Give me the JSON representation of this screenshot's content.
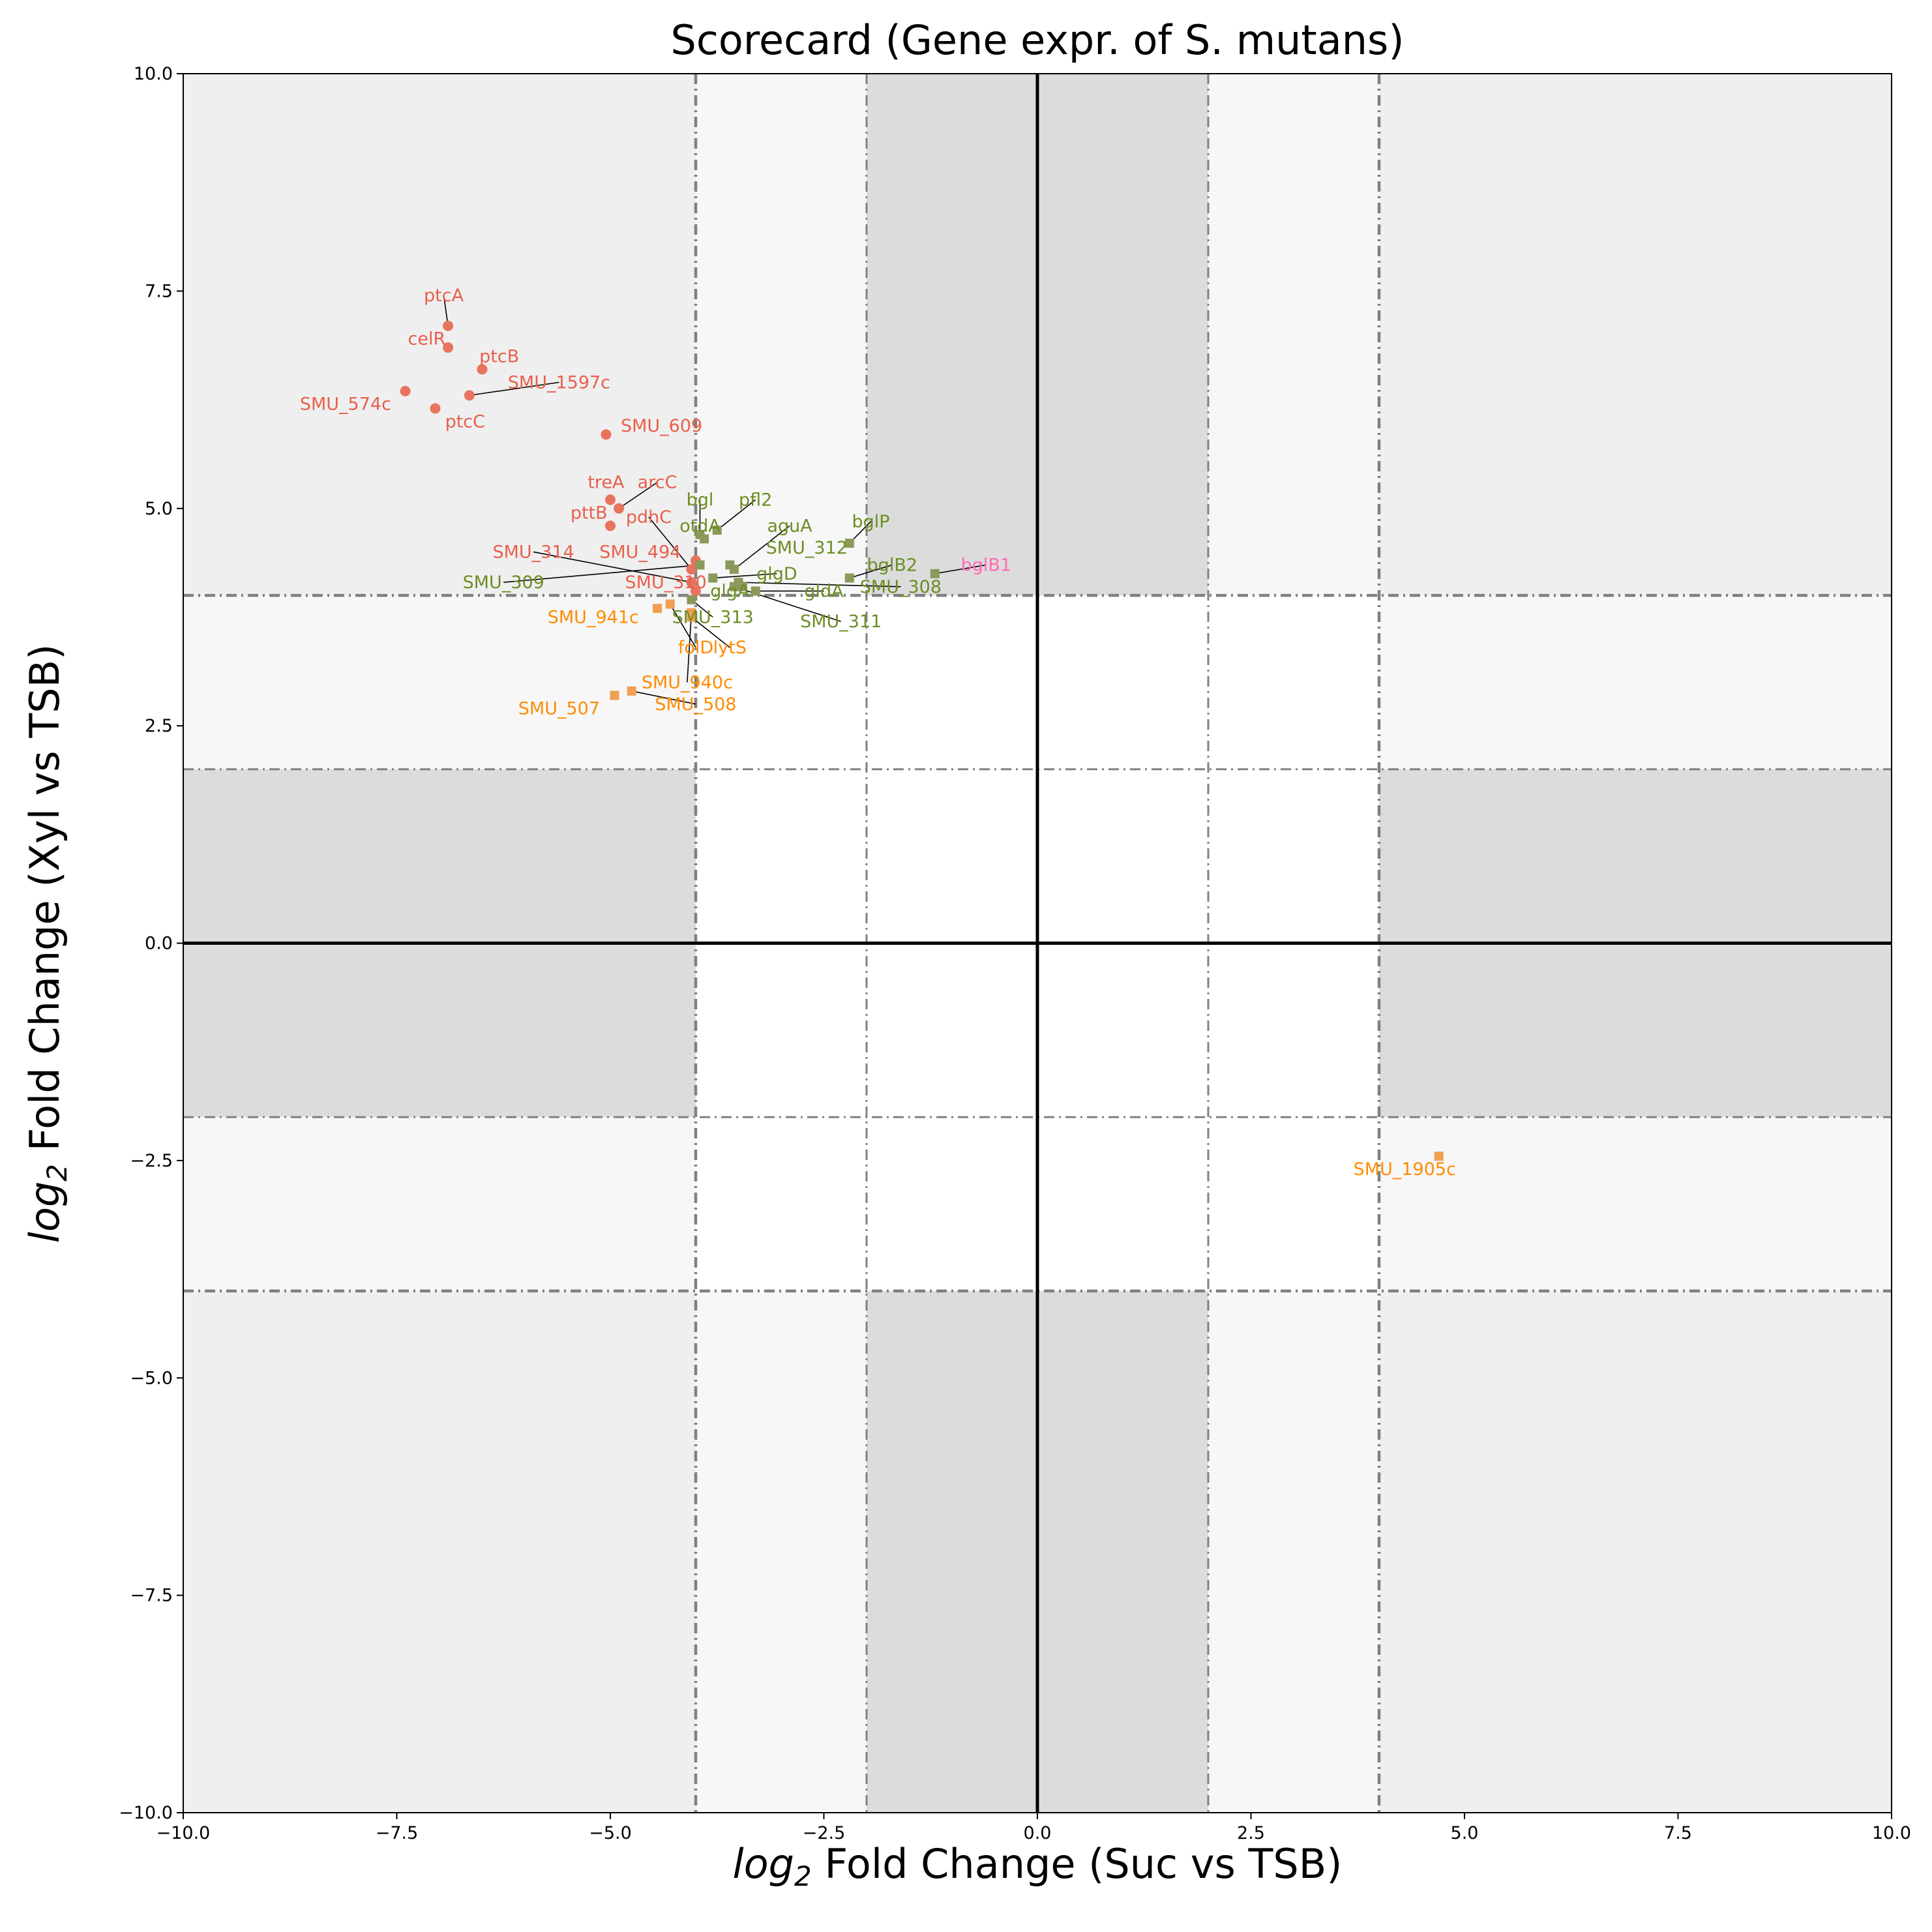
{
  "chart_data": {
    "type": "scatter",
    "title": "Scorecard (Gene expr. of S. mutans)",
    "xlabel_sub": "log",
    "xlabel_subscript": "2",
    "xlabel_rest": " Fold Change (Suc vs TSB)",
    "ylabel_sub": "log",
    "ylabel_subscript": "2",
    "ylabel_rest": " Fold Change (Xyl vs TSB)",
    "xlim": [
      -10,
      10
    ],
    "ylim": [
      -10,
      10
    ],
    "xticks": [
      "−10.0",
      "−7.5",
      "−5.0",
      "−2.5",
      "0.0",
      "2.5",
      "5.0",
      "7.5",
      "10.0"
    ],
    "yticks": [
      "−10.0",
      "−7.5",
      "−5.0",
      "−2.5",
      "0.0",
      "2.5",
      "5.0",
      "7.5",
      "10.0"
    ],
    "xtick_values": [
      -10,
      -7.5,
      -5,
      -2.5,
      0,
      2.5,
      5,
      7.5,
      10
    ],
    "ytick_values": [
      -10,
      -7.5,
      -5,
      -2.5,
      0,
      2.5,
      5,
      7.5,
      10
    ],
    "thresholds": {
      "inner": 2,
      "outer": 4
    },
    "colors": {
      "red": "#e8735e",
      "red_label": "#e8604c",
      "green": "#8a9a5b",
      "green_label": "#6b8e23",
      "orange": "#f0a050",
      "orange_label": "#ff8c00",
      "pink_label": "#ff69b4",
      "shade_dark": "#dcdcdc",
      "shade_mid": "#efefef",
      "shade_light": "#f7f7f7"
    },
    "points": [
      {
        "label": "ptcA",
        "x": -6.9,
        "y": 7.1,
        "group": "red",
        "lx": -6.95,
        "ly": 7.45,
        "leader": true
      },
      {
        "label": "celR",
        "x": -6.9,
        "y": 6.85,
        "group": "red",
        "lx": -7.15,
        "ly": 6.95,
        "leader": false
      },
      {
        "label": "ptcB",
        "x": -6.5,
        "y": 6.6,
        "group": "red",
        "lx": -6.3,
        "ly": 6.75,
        "leader": false
      },
      {
        "label": "SMU_1597c",
        "x": -6.65,
        "y": 6.3,
        "group": "red",
        "lx": -5.6,
        "ly": 6.45,
        "leader": true
      },
      {
        "label": "SMU_574c",
        "x": -7.4,
        "y": 6.35,
        "group": "red",
        "lx": -8.1,
        "ly": 6.2,
        "leader": false
      },
      {
        "label": "ptcC",
        "x": -7.05,
        "y": 6.15,
        "group": "red",
        "lx": -6.7,
        "ly": 6.0,
        "leader": false
      },
      {
        "label": "SMU_609",
        "x": -5.05,
        "y": 5.85,
        "group": "red",
        "lx": -4.4,
        "ly": 5.95,
        "leader": false
      },
      {
        "label": "arcC",
        "x": -4.9,
        "y": 5.0,
        "group": "red",
        "lx": -4.45,
        "ly": 5.3,
        "leader": true
      },
      {
        "label": "treA",
        "x": -5.0,
        "y": 5.1,
        "group": "red",
        "lx": -5.05,
        "ly": 5.3,
        "leader": false
      },
      {
        "label": "pttB",
        "x": -5.0,
        "y": 4.8,
        "group": "red",
        "lx": -5.25,
        "ly": 4.95,
        "leader": false
      },
      {
        "label": "pdhC",
        "x": -4.05,
        "y": 4.3,
        "group": "red",
        "lx": -4.55,
        "ly": 4.9,
        "leader": true
      },
      {
        "label": "SMU_314",
        "x": -4.05,
        "y": 4.15,
        "group": "red",
        "lx": -5.9,
        "ly": 4.5,
        "leader": true
      },
      {
        "label": "SMU_494",
        "x": -4.0,
        "y": 4.4,
        "group": "red",
        "lx": -4.65,
        "ly": 4.5,
        "leader": false
      },
      {
        "label": "SMU_310",
        "x": -4.0,
        "y": 4.05,
        "group": "red",
        "lx": -4.35,
        "ly": 4.15,
        "leader": false
      },
      {
        "label": "bgl",
        "x": -3.95,
        "y": 4.7,
        "group": "green",
        "lx": -3.95,
        "ly": 5.1,
        "leader": true
      },
      {
        "label": "pfl2",
        "x": -3.75,
        "y": 4.75,
        "group": "green",
        "lx": -3.3,
        "ly": 5.1,
        "leader": true
      },
      {
        "label": "otdA",
        "x": -3.9,
        "y": 4.65,
        "group": "green",
        "lx": -3.95,
        "ly": 4.8,
        "leader": false
      },
      {
        "label": "aguA",
        "x": -3.55,
        "y": 4.3,
        "group": "green",
        "lx": -2.9,
        "ly": 4.8,
        "leader": true
      },
      {
        "label": "SMU_312",
        "x": -3.6,
        "y": 4.35,
        "group": "green",
        "lx": -2.7,
        "ly": 4.55,
        "leader": false
      },
      {
        "label": "bglP",
        "x": -2.2,
        "y": 4.6,
        "group": "green",
        "lx": -1.95,
        "ly": 4.85,
        "leader": true
      },
      {
        "label": "bglB2",
        "x": -2.2,
        "y": 4.2,
        "group": "green",
        "lx": -1.7,
        "ly": 4.35,
        "leader": true
      },
      {
        "label": "SMU_309",
        "x": -3.95,
        "y": 4.35,
        "group": "green",
        "lx": -6.25,
        "ly": 4.15,
        "leader": true
      },
      {
        "label": "glgD",
        "x": -3.8,
        "y": 4.2,
        "group": "green",
        "lx": -3.05,
        "ly": 4.25,
        "leader": true
      },
      {
        "label": "SMU_308",
        "x": -3.5,
        "y": 4.15,
        "group": "green",
        "lx": -1.6,
        "ly": 4.1,
        "leader": true
      },
      {
        "label": "glgA",
        "x": -3.45,
        "y": 4.1,
        "group": "green",
        "lx": -3.6,
        "ly": 4.05,
        "leader": false
      },
      {
        "label": "gldA",
        "x": -3.3,
        "y": 4.05,
        "group": "green",
        "lx": -2.5,
        "ly": 4.05,
        "leader": true
      },
      {
        "label": "SMU_311",
        "x": -3.55,
        "y": 4.1,
        "group": "green",
        "lx": -2.3,
        "ly": 3.7,
        "leader": true
      },
      {
        "label": "SMU_313",
        "x": -4.05,
        "y": 3.95,
        "group": "green",
        "lx": -3.8,
        "ly": 3.75,
        "leader": true
      },
      {
        "label": "bglB1",
        "x": -1.2,
        "y": 4.25,
        "group": "pink",
        "lx": -0.6,
        "ly": 4.35,
        "leader": true
      },
      {
        "label": "SMU_941c",
        "x": -4.45,
        "y": 3.85,
        "group": "orange",
        "lx": -5.2,
        "ly": 3.75,
        "leader": false
      },
      {
        "label": "folD",
        "x": -4.3,
        "y": 3.9,
        "group": "orange",
        "lx": -4.0,
        "ly": 3.4,
        "leader": true
      },
      {
        "label": "lytS",
        "x": -4.05,
        "y": 3.75,
        "group": "orange",
        "lx": -3.6,
        "ly": 3.4,
        "leader": true
      },
      {
        "label": "SMU_940c",
        "x": -4.05,
        "y": 3.8,
        "group": "orange",
        "lx": -4.1,
        "ly": 3.0,
        "leader": true
      },
      {
        "label": "SMU_507",
        "x": -4.95,
        "y": 2.85,
        "group": "orange",
        "lx": -5.6,
        "ly": 2.7,
        "leader": false
      },
      {
        "label": "SMU_508",
        "x": -4.75,
        "y": 2.9,
        "group": "orange",
        "lx": -4.0,
        "ly": 2.75,
        "leader": true
      },
      {
        "label": "SMU_1905c",
        "x": 4.7,
        "y": -2.45,
        "group": "orange",
        "lx": 4.3,
        "ly": -2.6,
        "leader": false
      }
    ]
  }
}
